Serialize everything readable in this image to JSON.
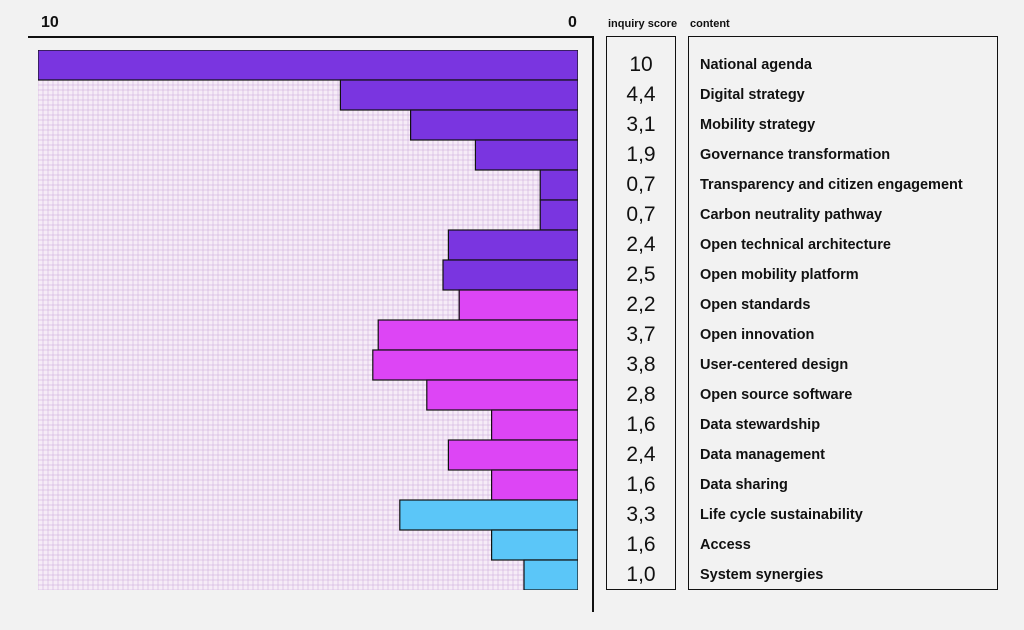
{
  "header": {
    "axis_max_label": "10",
    "axis_min_label": "0",
    "score_column_label": "inquiry score",
    "content_column_label": "content"
  },
  "colors": {
    "purple": "#7a35e0",
    "magenta": "#dd45f5",
    "blue": "#5bc6f8",
    "grid_line": "#c9a6d8",
    "grid_bg": "#f6ecf7"
  },
  "chart_data": {
    "type": "bar",
    "orientation": "horizontal",
    "direction": "right-to-left",
    "xlim": [
      0,
      10
    ],
    "grid": true,
    "categories": [
      "National agenda",
      "Digital strategy",
      "Mobility strategy",
      "Governance transformation",
      "Transparency and citizen engagement",
      "Carbon neutrality pathway",
      "Open technical architecture",
      "Open mobility platform",
      "Open standards",
      "Open innovation",
      "User-centered design",
      "Open source software",
      "Data stewardship",
      "Data management",
      "Data sharing",
      "Life cycle sustainability",
      "Access",
      "System synergies"
    ],
    "values": [
      10,
      4.4,
      3.1,
      1.9,
      0.7,
      0.7,
      2.4,
      2.5,
      2.2,
      3.7,
      3.8,
      2.8,
      1.6,
      2.4,
      1.6,
      3.3,
      1.6,
      1.0
    ],
    "value_labels": [
      "10",
      "4,4",
      "3,1",
      "1,9",
      "0,7",
      "0,7",
      "2,4",
      "2,5",
      "2,2",
      "3,7",
      "3,8",
      "2,8",
      "1,6",
      "2,4",
      "1,6",
      "3,3",
      "1,6",
      "1,0"
    ],
    "bar_colors": [
      "purple",
      "purple",
      "purple",
      "purple",
      "purple",
      "purple",
      "purple",
      "purple",
      "magenta",
      "magenta",
      "magenta",
      "magenta",
      "magenta",
      "magenta",
      "magenta",
      "blue",
      "blue",
      "blue"
    ]
  }
}
